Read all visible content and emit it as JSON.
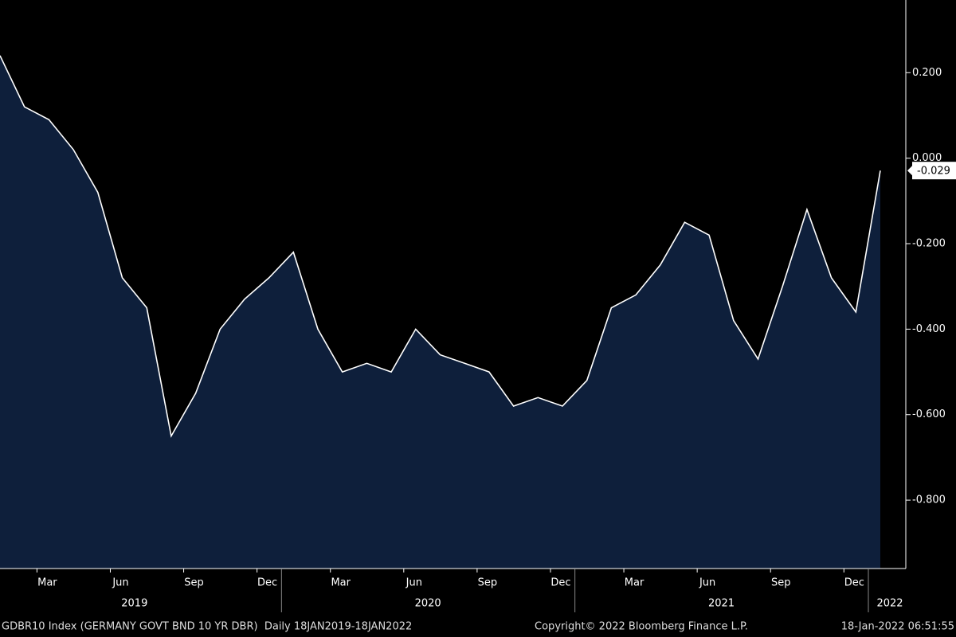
{
  "chart_data": {
    "type": "area",
    "categories": [
      null,
      null,
      "Mar",
      null,
      null,
      "Jun",
      null,
      null,
      "Sep",
      null,
      null,
      "Dec",
      null,
      null,
      "Mar",
      null,
      null,
      "Jun",
      null,
      null,
      "Sep",
      null,
      null,
      "Dec",
      null,
      null,
      "Mar",
      null,
      null,
      "Jun",
      null,
      null,
      "Sep",
      null,
      null,
      "Dec",
      null
    ],
    "years": [
      "2019",
      "2020",
      "2021",
      "2022"
    ],
    "series": [
      {
        "name": "GDBR10 Index",
        "color": "#ffffff",
        "fill": "#0e1f3b",
        "values": [
          0.24,
          0.12,
          0.09,
          0.02,
          -0.08,
          -0.28,
          -0.35,
          -0.65,
          -0.55,
          -0.4,
          -0.33,
          -0.28,
          -0.22,
          -0.4,
          -0.5,
          -0.48,
          -0.5,
          -0.4,
          -0.46,
          -0.48,
          -0.5,
          -0.58,
          -0.56,
          -0.58,
          -0.52,
          -0.35,
          -0.32,
          -0.25,
          -0.15,
          -0.18,
          -0.38,
          -0.47,
          -0.3,
          -0.12,
          -0.28,
          -0.36,
          -0.029
        ],
        "last_value_label": "-0.029"
      }
    ],
    "ylim": [
      -0.96,
      0.37
    ],
    "yticks": [
      {
        "value": -0.8,
        "label": "-0.800"
      },
      {
        "value": -0.6,
        "label": "-0.600"
      },
      {
        "value": -0.4,
        "label": "-0.400"
      },
      {
        "value": -0.2,
        "label": "-0.200"
      },
      {
        "value": 0,
        "label": "0.000"
      },
      {
        "value": 0.2,
        "label": "0.200"
      }
    ],
    "footer": {
      "left": "GDBR10 Index (GERMANY GOVT BND 10 YR DBR)  Daily 18JAN2019-18JAN2022",
      "center": "Copyright© 2022 Bloomberg Finance L.P.",
      "right": "18-Jan-2022 06:51:55"
    }
  }
}
